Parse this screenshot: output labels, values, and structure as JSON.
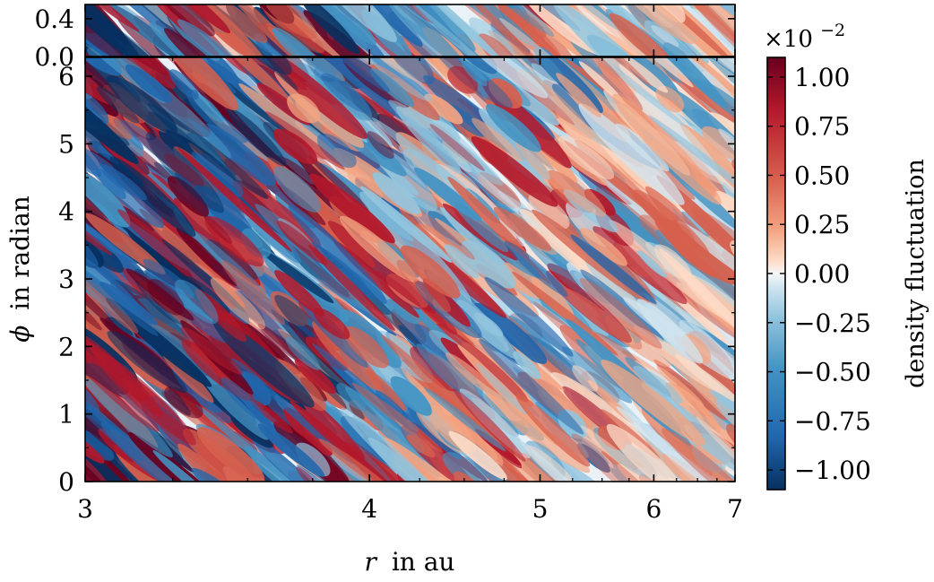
{
  "chart_data": [
    {
      "type": "heatmap",
      "panel": "top",
      "title": "",
      "xlabel": "",
      "ylabel": "",
      "xlim": [
        3,
        7
      ],
      "ylim": [
        0,
        0.55
      ],
      "yticks": [
        {
          "value": 0.0,
          "label": "0.0"
        },
        {
          "value": 0.4,
          "label": "0.4"
        }
      ]
    },
    {
      "type": "heatmap",
      "panel": "main",
      "title": "",
      "xlabel": "in au",
      "xlabel_symbol": "r",
      "ylabel": "in radian",
      "ylabel_symbol": "ϕ",
      "xlim": [
        3,
        7
      ],
      "ylim": [
        0,
        6.28
      ],
      "x_scale": "reciprocal",
      "xticks": [
        {
          "value": 3,
          "label": "3"
        },
        {
          "value": 4,
          "label": "4"
        },
        {
          "value": 5,
          "label": "5"
        },
        {
          "value": 6,
          "label": "6"
        },
        {
          "value": 7,
          "label": "7"
        }
      ],
      "yticks": [
        {
          "value": 0,
          "label": "0"
        },
        {
          "value": 1,
          "label": "1"
        },
        {
          "value": 2,
          "label": "2"
        },
        {
          "value": 3,
          "label": "3"
        },
        {
          "value": 4,
          "label": "4"
        },
        {
          "value": 5,
          "label": "5"
        },
        {
          "value": 6,
          "label": "6"
        }
      ],
      "colorbar": {
        "label": "density fluctuation",
        "multiplier_base": "×10",
        "multiplier_exp": "−2",
        "range": [
          -1.1,
          1.1
        ],
        "colormap": "RdBu_r",
        "ticks": [
          {
            "value": 1.0,
            "label": "1.00"
          },
          {
            "value": 0.75,
            "label": "0.75"
          },
          {
            "value": 0.5,
            "label": "0.50"
          },
          {
            "value": 0.25,
            "label": "0.25"
          },
          {
            "value": 0.0,
            "label": "0.00"
          },
          {
            "value": -0.25,
            "label": "−0.25"
          },
          {
            "value": -0.5,
            "label": "−0.50"
          },
          {
            "value": -0.75,
            "label": "−0.75"
          },
          {
            "value": -1.0,
            "label": "−1.00"
          }
        ]
      },
      "colors": {
        "dark_red": "#67001f",
        "red": "#b2182b",
        "light_red": "#f4a582",
        "white": "#f7f7f7",
        "light_blue": "#92c5de",
        "blue": "#2166ac",
        "dark_blue": "#053061"
      }
    }
  ]
}
